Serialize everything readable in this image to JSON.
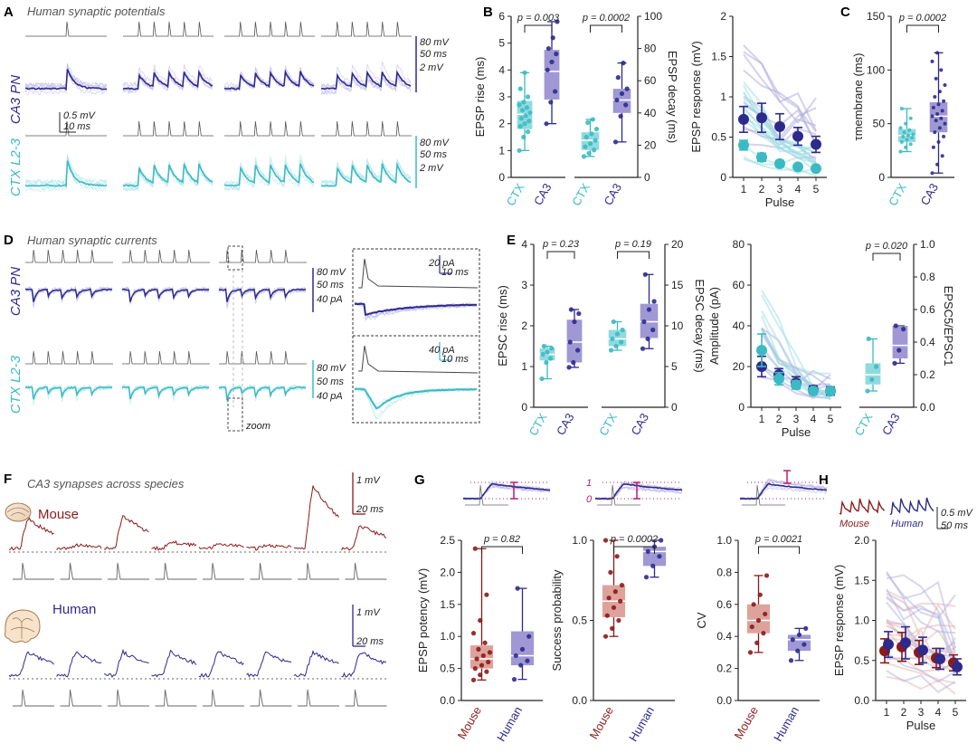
{
  "colors": {
    "ctx": "#3bbac4",
    "ca3": "#2d2a8c",
    "ca3_box": "#8f86cc",
    "ctx_box": "#7dd3d9",
    "mouse": "#8b1a1a",
    "mouse_box": "#d7928a",
    "human": "#2d2a8c",
    "pink": "#c0196e"
  },
  "panels": {
    "A": {
      "label": "A",
      "title": "Human synaptic potentials",
      "row1": "CA3 PN",
      "row2": "CTX L2-3",
      "scale_top": {
        "v1": "80 mV",
        "t1": "50 ms",
        "v2": "2 mV"
      },
      "scale_mid": {
        "v": "0.5 mV",
        "t": "10 ms"
      },
      "scale_bot": {
        "v1": "80 mV",
        "t1": "50 ms",
        "v2": "2 mV"
      }
    },
    "B": {
      "label": "B"
    },
    "C": {
      "label": "C"
    },
    "D": {
      "label": "D",
      "title": "Human synaptic currents",
      "row1": "CA3 PN",
      "row2": "CTX L2-3",
      "zoom": "zoom",
      "scale_top": {
        "v": "80 mV",
        "t": "50 ms",
        "i": "40 pA"
      },
      "scale_bot": {
        "v": "80 mV",
        "t": "50 ms",
        "i": "40 pA"
      },
      "inset_top": {
        "i": "20 pA",
        "t": "10 ms"
      },
      "inset_bot": {
        "i": "40 pA",
        "t": "10 ms"
      }
    },
    "E": {
      "label": "E"
    },
    "F": {
      "label": "F",
      "title": "CA3 synapses across species",
      "mouse": "Mouse",
      "human": "Human",
      "sb_mouse": {
        "v": "1 mV",
        "t": "20 ms"
      },
      "sb_human": {
        "v": "1 mV",
        "t": "20 ms"
      }
    },
    "G": {
      "label": "G",
      "inset_ticks": [
        "1",
        "0"
      ]
    },
    "H": {
      "label": "H",
      "mouse": "Mouse",
      "human": "Human",
      "sb": {
        "v": "0.5 mV",
        "t": "50 ms"
      }
    }
  },
  "chart_data": [
    {
      "id": "B1",
      "type": "box",
      "categories": [
        "CTX",
        "CA3"
      ],
      "ylabel": "EPSP rise (ms)",
      "ylim": [
        0,
        6
      ],
      "yticks": [
        0,
        1,
        2,
        3,
        4,
        5,
        6
      ],
      "pvalue": "p = 0.003",
      "boxes": [
        {
          "min": 1.0,
          "q1": 1.8,
          "median": 2.35,
          "q3": 2.85,
          "max": 3.9,
          "points": [
            1.0,
            1.5,
            1.7,
            1.9,
            2.0,
            2.1,
            2.2,
            2.3,
            2.4,
            2.5,
            2.6,
            2.7,
            2.8,
            3.0,
            3.3,
            3.9
          ]
        },
        {
          "min": 2.0,
          "q1": 2.9,
          "median": 3.95,
          "q3": 4.75,
          "max": 5.8,
          "points": [
            2.0,
            2.8,
            3.2,
            4.0,
            4.3,
            4.6,
            4.8,
            5.2,
            5.8
          ]
        }
      ]
    },
    {
      "id": "B2",
      "type": "box",
      "categories": [
        "CTX",
        "CA3"
      ],
      "ylabel": "EPSP decay (ms)",
      "ylim": [
        0,
        100
      ],
      "yticks": [
        0,
        20,
        40,
        60,
        80,
        100
      ],
      "pvalue": "p = 0.0002",
      "boxes": [
        {
          "min": 13,
          "q1": 17,
          "median": 23,
          "q3": 28,
          "max": 36,
          "points": [
            13,
            15,
            17,
            19,
            21,
            23,
            25,
            27,
            30,
            34,
            36
          ]
        },
        {
          "min": 22,
          "q1": 40,
          "median": 48,
          "q3": 55,
          "max": 71,
          "points": [
            22,
            38,
            45,
            48,
            52,
            55,
            62,
            71
          ]
        }
      ]
    },
    {
      "id": "B3",
      "type": "line",
      "xlabel": "Pulse",
      "ylabel": "EPSP response (mV)",
      "x": [
        1,
        2,
        3,
        4,
        5
      ],
      "ylim": [
        0,
        2
      ],
      "yticks": [
        0,
        0.5,
        1.0,
        1.5,
        2.0
      ],
      "series": [
        {
          "name": "CA3",
          "values": [
            0.72,
            0.74,
            0.63,
            0.51,
            0.41
          ],
          "err": [
            0.16,
            0.18,
            0.16,
            0.11,
            0.1
          ]
        },
        {
          "name": "CTX",
          "values": [
            0.4,
            0.25,
            0.17,
            0.13,
            0.11
          ],
          "err": [
            0.06,
            0.05,
            0.04,
            0.03,
            0.03
          ]
        }
      ]
    },
    {
      "id": "C",
      "type": "box",
      "categories": [
        "CTX",
        "CA3"
      ],
      "ylabel": "τmembrane (ms)",
      "ylim": [
        0,
        150
      ],
      "yticks": [
        0,
        50,
        100,
        150
      ],
      "pvalue": "p = 0.0002",
      "boxes": [
        {
          "min": 24,
          "q1": 33,
          "median": 39,
          "q3": 45,
          "max": 64,
          "points": [
            24,
            28,
            31,
            33,
            35,
            37,
            38,
            39,
            40,
            42,
            44,
            46,
            50,
            55,
            64
          ]
        },
        {
          "min": 4,
          "q1": 42,
          "median": 57,
          "q3": 70,
          "max": 116,
          "points": [
            4,
            12,
            20,
            28,
            33,
            38,
            42,
            46,
            50,
            53,
            55,
            57,
            59,
            62,
            65,
            68,
            71,
            75,
            80,
            86,
            92,
            100,
            108,
            116
          ]
        }
      ]
    },
    {
      "id": "E1",
      "type": "box",
      "categories": [
        "CTX",
        "CA3"
      ],
      "ylabel": "EPSC rise (ms)",
      "ylim": [
        0,
        4
      ],
      "yticks": [
        0,
        1,
        2,
        3,
        4
      ],
      "pvalue": "p = 0.23",
      "boxes": [
        {
          "min": 0.7,
          "q1": 1.15,
          "median": 1.3,
          "q3": 1.45,
          "max": 1.5,
          "points": [
            0.7,
            1.1,
            1.2,
            1.3,
            1.35,
            1.45,
            1.5
          ]
        },
        {
          "min": 0.98,
          "q1": 1.1,
          "median": 1.6,
          "q3": 2.15,
          "max": 2.4,
          "points": [
            0.98,
            1.1,
            1.4,
            1.6,
            2.1,
            2.3,
            2.4
          ]
        }
      ]
    },
    {
      "id": "E2",
      "type": "box",
      "categories": [
        "CTX",
        "CA3"
      ],
      "ylabel": "EPSC decay (ms)",
      "ylim": [
        0,
        20
      ],
      "yticks": [
        0,
        5,
        10,
        15,
        20
      ],
      "pvalue": "p = 0.19",
      "boxes": [
        {
          "min": 7,
          "q1": 7.5,
          "median": 8.4,
          "q3": 9.5,
          "max": 10.5,
          "points": [
            7,
            7.5,
            8,
            8.4,
            9,
            9.5,
            10.5
          ]
        },
        {
          "min": 7.2,
          "q1": 8.5,
          "median": 10.5,
          "q3": 12.7,
          "max": 16.3,
          "points": [
            7.2,
            8.4,
            9.5,
            10.5,
            12,
            13,
            16.3
          ]
        }
      ]
    },
    {
      "id": "E3",
      "type": "line",
      "xlabel": "Pulse",
      "ylabel": "Amplitude (pA)",
      "x": [
        1,
        2,
        3,
        4,
        5
      ],
      "ylim": [
        0,
        80
      ],
      "yticks": [
        0,
        20,
        40,
        60,
        80
      ],
      "series": [
        {
          "name": "CA3",
          "values": [
            20,
            16,
            12,
            8.5,
            8
          ],
          "err": [
            5,
            3,
            3,
            2,
            2
          ]
        },
        {
          "name": "CTX",
          "values": [
            28,
            14,
            11,
            8,
            8
          ],
          "err": [
            8,
            3,
            2,
            1.5,
            1.5
          ]
        }
      ]
    },
    {
      "id": "E4",
      "type": "box",
      "categories": [
        "CTX",
        "CA3"
      ],
      "ylabel": "EPSC5/EPSC1",
      "ylim": [
        0,
        1.0
      ],
      "yticks": [
        "0.0",
        "0.2",
        "0.4",
        "0.6",
        "0.8",
        "1.0"
      ],
      "pvalue": "p = 0.020",
      "boxes": [
        {
          "min": 0.1,
          "q1": 0.14,
          "median": 0.2,
          "q3": 0.27,
          "max": 0.42,
          "points": [
            0.1,
            0.17,
            0.25,
            0.42
          ]
        },
        {
          "min": 0.27,
          "q1": 0.3,
          "median": 0.38,
          "q3": 0.5,
          "max": 0.5,
          "points": [
            0.27,
            0.35,
            0.48,
            0.5
          ]
        }
      ]
    },
    {
      "id": "G1",
      "type": "box",
      "categories": [
        "Mouse",
        "Human"
      ],
      "ylabel": "EPSP potency (mV)",
      "ylim": [
        0,
        2.5
      ],
      "yticks": [
        "0.0",
        "0.5",
        "1.0",
        "1.5",
        "2.0",
        "2.5"
      ],
      "pvalue": "p = 0.82",
      "boxes": [
        {
          "min": 0.32,
          "q1": 0.5,
          "median": 0.65,
          "q3": 0.86,
          "max": 2.37,
          "points": [
            0.32,
            0.4,
            0.45,
            0.5,
            0.55,
            0.6,
            0.65,
            0.7,
            0.75,
            0.8,
            0.9,
            1.05,
            1.25,
            1.65,
            2.37
          ]
        },
        {
          "min": 0.33,
          "q1": 0.55,
          "median": 0.7,
          "q3": 1.08,
          "max": 1.75,
          "points": [
            0.33,
            0.55,
            0.62,
            0.7,
            0.8,
            1.0,
            1.75
          ]
        }
      ]
    },
    {
      "id": "G2",
      "type": "box",
      "categories": [
        "Mouse",
        "Human"
      ],
      "ylabel": "Success probability",
      "ylim": [
        0,
        1.0
      ],
      "yticks": [
        "0.0",
        "0.5",
        "1.0"
      ],
      "pvalue": "p = 0.0002",
      "boxes": [
        {
          "min": 0.4,
          "q1": 0.52,
          "median": 0.62,
          "q3": 0.72,
          "max": 1.0,
          "points": [
            0.4,
            0.45,
            0.5,
            0.53,
            0.58,
            0.62,
            0.64,
            0.68,
            0.72,
            0.8,
            0.9,
            1.0
          ]
        },
        {
          "min": 0.77,
          "q1": 0.84,
          "median": 0.93,
          "q3": 0.96,
          "max": 1.0,
          "points": [
            0.77,
            0.84,
            0.9,
            0.93,
            0.96,
            1.0
          ]
        }
      ]
    },
    {
      "id": "G3",
      "type": "box",
      "categories": [
        "Mouse",
        "Human"
      ],
      "ylabel": "CV",
      "ylim": [
        0,
        1.0
      ],
      "yticks": [
        "0.0",
        "0.2",
        "0.4",
        "0.6",
        "0.8",
        "1.0"
      ],
      "pvalue": "p = 0.0021",
      "boxes": [
        {
          "min": 0.3,
          "q1": 0.42,
          "median": 0.5,
          "q3": 0.6,
          "max": 0.78,
          "points": [
            0.3,
            0.36,
            0.42,
            0.46,
            0.5,
            0.54,
            0.6,
            0.66,
            0.78
          ]
        },
        {
          "min": 0.25,
          "q1": 0.31,
          "median": 0.38,
          "q3": 0.41,
          "max": 0.45,
          "points": [
            0.25,
            0.31,
            0.35,
            0.38,
            0.41,
            0.45
          ]
        }
      ]
    },
    {
      "id": "H",
      "type": "line",
      "xlabel": "Pulse",
      "ylabel": "EPSP response (mV)",
      "x": [
        1,
        2,
        3,
        4,
        5
      ],
      "ylim": [
        0,
        2
      ],
      "yticks": [
        "0.0",
        "0.5",
        "1.0",
        "1.5",
        "2.0"
      ],
      "series": [
        {
          "name": "Mouse",
          "values": [
            0.62,
            0.67,
            0.6,
            0.53,
            0.47
          ],
          "err": [
            0.15,
            0.18,
            0.15,
            0.12,
            0.1
          ]
        },
        {
          "name": "Human",
          "values": [
            0.7,
            0.72,
            0.63,
            0.52,
            0.42
          ],
          "err": [
            0.16,
            0.2,
            0.16,
            0.13,
            0.1
          ]
        }
      ]
    }
  ]
}
